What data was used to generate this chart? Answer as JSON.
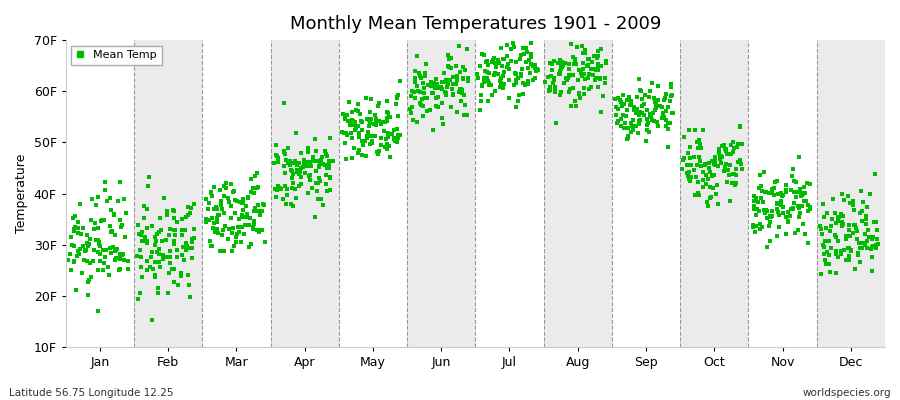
{
  "title": "Monthly Mean Temperatures 1901 - 2009",
  "ylabel": "Temperature",
  "ylim": [
    10,
    70
  ],
  "yticks": [
    10,
    20,
    30,
    40,
    50,
    60,
    70
  ],
  "ytick_labels": [
    "10F",
    "20F",
    "30F",
    "40F",
    "50F",
    "60F",
    "70F"
  ],
  "months": [
    "Jan",
    "Feb",
    "Mar",
    "Apr",
    "May",
    "Jun",
    "Jul",
    "Aug",
    "Sep",
    "Oct",
    "Nov",
    "Dec"
  ],
  "xlim": [
    0,
    12
  ],
  "marker_color": "#00bb00",
  "legend_label": "Mean Temp",
  "bg_color": "#ffffff",
  "plot_bg_color": "#ffffff",
  "alt_band_color": "#ebebeb",
  "dashed_line_color": "#999999",
  "bottom_left": "Latitude 56.75 Longitude 12.25",
  "bottom_right": "worldspecies.org",
  "mean_temps_F": [
    29.5,
    28.5,
    35.0,
    44.0,
    52.0,
    60.0,
    63.5,
    62.5,
    55.0,
    45.0,
    37.0,
    31.5
  ],
  "std_temps_F": [
    4.5,
    5.0,
    4.0,
    3.5,
    3.5,
    3.5,
    3.0,
    3.5,
    3.0,
    3.5,
    3.5,
    4.0
  ],
  "trend_per_century_F": [
    1.5,
    1.5,
    1.5,
    1.5,
    1.5,
    1.5,
    1.5,
    1.5,
    1.5,
    1.5,
    1.5,
    1.5
  ],
  "n_years": 109,
  "start_year": 1901,
  "seed": 12345,
  "marker_size": 9,
  "figsize": [
    9.0,
    4.0
  ],
  "dpi": 100
}
